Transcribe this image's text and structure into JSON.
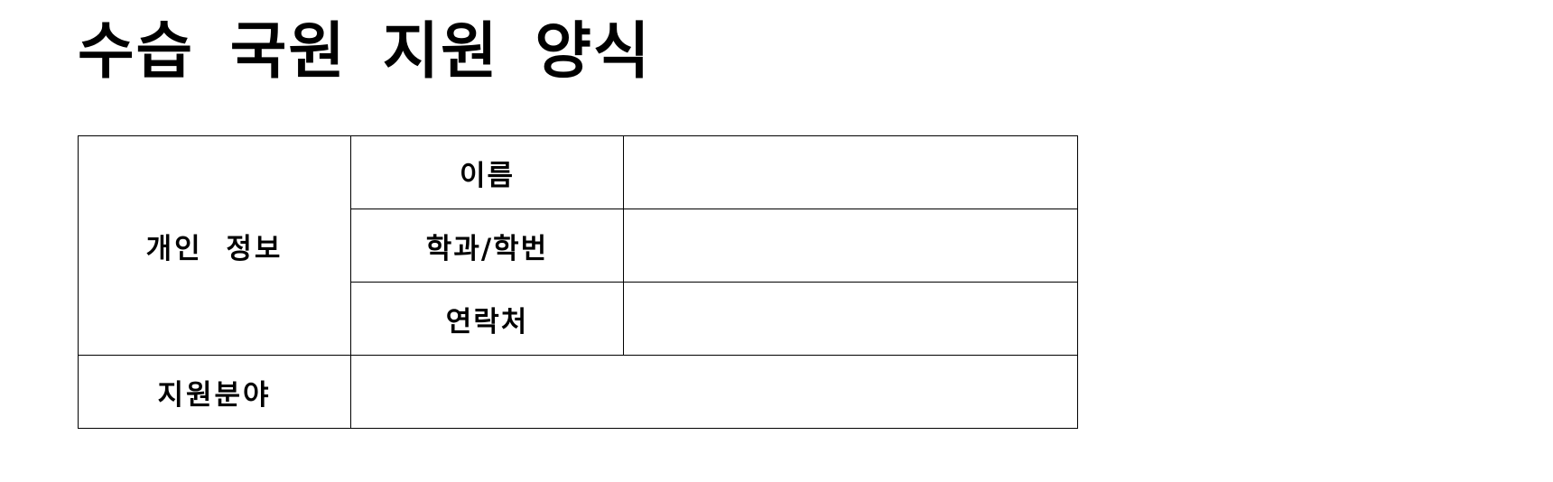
{
  "form": {
    "title": "수습 국원 지원 양식",
    "personal_info_label": "개인 정보",
    "fields": [
      {
        "label": "이름",
        "value": ""
      },
      {
        "label": "학과/학번",
        "value": ""
      },
      {
        "label": "연락처",
        "value": ""
      }
    ],
    "application_field_label": "지원분야",
    "application_field_value": ""
  }
}
